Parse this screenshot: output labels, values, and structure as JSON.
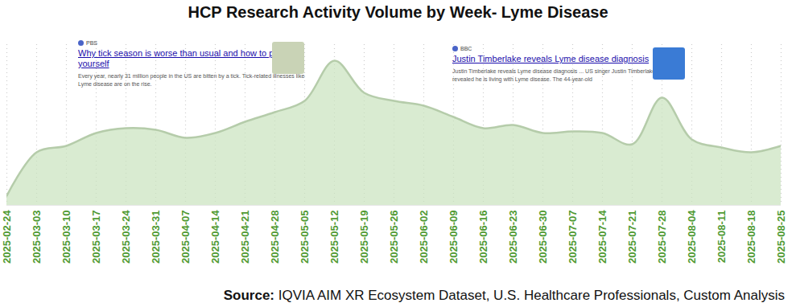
{
  "chart_data": {
    "type": "area",
    "title": "HCP Research Activity Volume by Week- Lyme Disease",
    "x": [
      "2025-02-24",
      "2025-03-03",
      "2025-03-10",
      "2025-03-17",
      "2025-03-24",
      "2025-03-31",
      "2025-04-07",
      "2025-04-14",
      "2025-04-21",
      "2025-04-28",
      "2025-05-05",
      "2025-05-12",
      "2025-05-19",
      "2025-05-26",
      "2025-06-02",
      "2025-06-09",
      "2025-06-16",
      "2025-06-23",
      "2025-06-30",
      "2025-07-07",
      "2025-07-14",
      "2025-07-21",
      "2025-07-28",
      "2025-08-04",
      "2025-08-11",
      "2025-08-18",
      "2025-08-25"
    ],
    "values": [
      6,
      33,
      37,
      45,
      48,
      47,
      42,
      45,
      52,
      58,
      65,
      90,
      70,
      65,
      62,
      55,
      48,
      50,
      45,
      46,
      45,
      38,
      67,
      41,
      36,
      33,
      37
    ],
    "color": "#c9e3bd",
    "ylim": [
      0,
      100
    ],
    "tick_labels": "x",
    "grid": true,
    "annotations": [
      {
        "source": "PBS",
        "headline": "Why tick season is worse than usual and how to protect yourself",
        "text": "Every year, nearly 31 million people in the US are bitten by a tick. Tick-related illnesses like Lyme disease are on the rise."
      },
      {
        "source": "BBC",
        "headline": "Justin Timberlake reveals Lyme disease diagnosis",
        "text": "Justin Timberlake reveals Lyme disease diagnosis ... US singer Justin Timberlake has revealed he is living with Lyme disease. The 44-year-old"
      }
    ],
    "source_label": "Source:",
    "source": "IQVIA AIM XR Ecosystem Dataset, U.S. Healthcare Professionals, Custom Analysis"
  }
}
